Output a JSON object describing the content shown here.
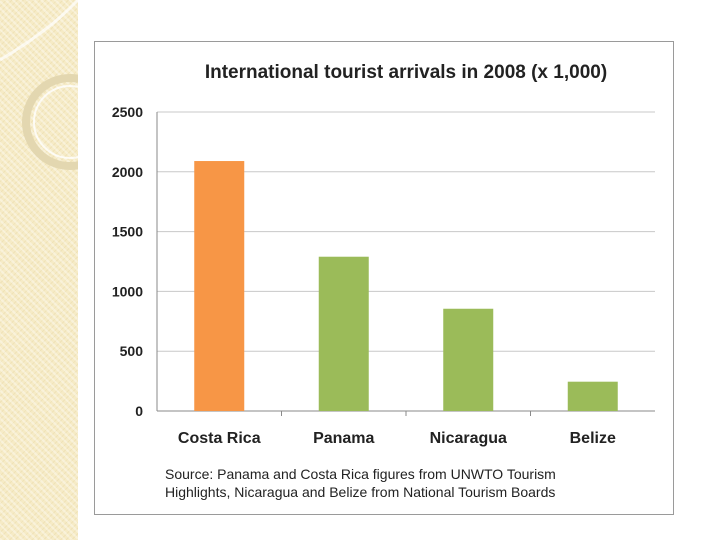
{
  "chart_data": {
    "type": "bar",
    "title": "International tourist arrivals in 2008 (x 1,000)",
    "categories": [
      "Costa Rica",
      "Panama",
      "Nicaragua",
      "Belize"
    ],
    "values": [
      2090,
      1290,
      855,
      245
    ],
    "bar_colors": [
      "#f79646",
      "#9bbb59",
      "#9bbb59",
      "#9bbb59"
    ],
    "ylim": [
      0,
      2500
    ],
    "yticks": [
      "0",
      "500",
      "1000",
      "1500",
      "2000",
      "2500"
    ],
    "grid": true,
    "xlabel": "",
    "ylabel": ""
  },
  "source": {
    "line1": "Source: Panama and Costa Rica figures from UNWTO Tourism",
    "line2": "Highlights, Nicaragua and Belize from National Tourism Boards"
  }
}
